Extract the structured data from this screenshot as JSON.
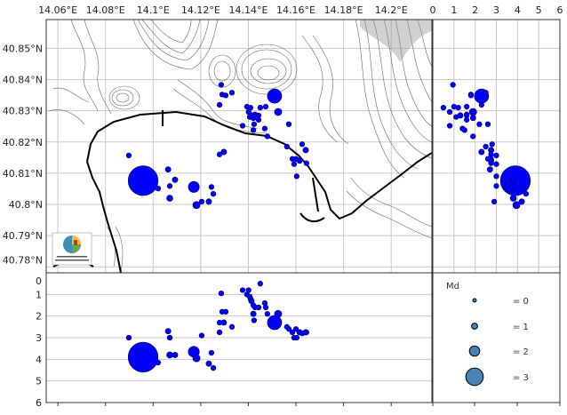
{
  "colors": {
    "event_fill": "#0000ff",
    "event_stroke": "#00008b",
    "legend_fill": "#4682b4",
    "grid": "#c8c8c8"
  },
  "map": {
    "lon_ticks": [
      {
        "value": 14.06,
        "label": "14.06°E"
      },
      {
        "value": 14.08,
        "label": "14.08°E"
      },
      {
        "value": 14.1,
        "label": "14.1°E"
      },
      {
        "value": 14.12,
        "label": "14.12°E"
      },
      {
        "value": 14.14,
        "label": "14.14°E"
      },
      {
        "value": 14.16,
        "label": "14.16°E"
      },
      {
        "value": 14.18,
        "label": "14.18°E"
      },
      {
        "value": 14.2,
        "label": "14.2°E"
      }
    ],
    "lat_ticks": [
      {
        "value": 40.85,
        "label": "40.85°N"
      },
      {
        "value": 40.84,
        "label": "40.84°N"
      },
      {
        "value": 40.83,
        "label": "40.83°N"
      },
      {
        "value": 40.82,
        "label": "40.82°N"
      },
      {
        "value": 40.81,
        "label": "40.81°N"
      },
      {
        "value": 40.8,
        "label": "40.8°N"
      },
      {
        "value": 40.79,
        "label": "40.79°N"
      },
      {
        "value": 40.78,
        "label": "40.78°N"
      }
    ],
    "lon_range": [
      14.0551,
      14.2171
    ],
    "lat_range": [
      40.7781,
      40.8592
    ],
    "logo_text": "ISTITUTO NAZIONALE DI GEOFISICA E VULCANOLOGIA"
  },
  "depth_axis": {
    "ticks": [
      "0",
      "1",
      "2",
      "3",
      "4",
      "5",
      "6"
    ],
    "range": [
      0,
      6
    ]
  },
  "legend": {
    "title": "Md",
    "items": [
      {
        "md": 0,
        "label": "= 0"
      },
      {
        "md": 1,
        "label": "= 1"
      },
      {
        "md": 2,
        "label": "= 2"
      },
      {
        "md": 3,
        "label": "= 3"
      }
    ]
  },
  "chart_data": {
    "type": "scatter",
    "fields": [
      "lon",
      "lat",
      "depth_km",
      "md"
    ],
    "events": [
      [
        14.0958,
        40.8076,
        3.9,
        4.0
      ],
      [
        14.151,
        40.8347,
        2.3,
        2.6
      ],
      [
        14.1171,
        40.8056,
        3.65,
        2.1
      ],
      [
        14.1182,
        40.7998,
        3.95,
        1.3
      ],
      [
        14.1525,
        40.8296,
        1.9,
        1.3
      ],
      [
        14.1286,
        40.8383,
        0.95,
        0.6
      ],
      [
        14.129,
        40.8352,
        1.8,
        0.6
      ],
      [
        14.1305,
        40.8349,
        1.8,
        0.6
      ],
      [
        14.1331,
        40.8358,
        2.5,
        0.6
      ],
      [
        14.1279,
        40.8319,
        2.3,
        0.6
      ],
      [
        14.1394,
        40.8313,
        1.0,
        0.6
      ],
      [
        14.1409,
        40.831,
        1.2,
        0.6
      ],
      [
        14.145,
        40.831,
        0.5,
        0.6
      ],
      [
        14.1473,
        40.8313,
        1.6,
        0.6
      ],
      [
        14.1401,
        40.8296,
        0.8,
        0.6
      ],
      [
        14.1413,
        40.8285,
        1.3,
        0.8
      ],
      [
        14.1428,
        40.8288,
        1.6,
        0.6
      ],
      [
        14.1443,
        40.8285,
        1.6,
        0.6
      ],
      [
        14.1406,
        40.828,
        1.1,
        0.6
      ],
      [
        14.1421,
        40.8277,
        1.9,
        0.8
      ],
      [
        14.1443,
        40.8271,
        1.6,
        0.6
      ],
      [
        14.1376,
        40.8252,
        0.8,
        0.6
      ],
      [
        14.1424,
        40.8257,
        2.2,
        0.6
      ],
      [
        14.1469,
        40.8243,
        1.4,
        0.6
      ],
      [
        14.1421,
        40.8238,
        1.5,
        0.6
      ],
      [
        14.148,
        40.8218,
        1.9,
        0.6
      ],
      [
        14.157,
        40.8257,
        2.6,
        0.6
      ],
      [
        14.1562,
        40.8185,
        2.5,
        0.6
      ],
      [
        14.1626,
        40.8193,
        2.8,
        0.6
      ],
      [
        14.1641,
        40.8174,
        2.75,
        0.8
      ],
      [
        14.1585,
        40.8146,
        2.75,
        0.6
      ],
      [
        14.16,
        40.8146,
        2.6,
        0.6
      ],
      [
        14.1615,
        40.814,
        2.75,
        0.8
      ],
      [
        14.1592,
        40.8129,
        3.0,
        0.6
      ],
      [
        14.1644,
        40.8132,
        2.75,
        0.6
      ],
      [
        14.1603,
        40.809,
        3.0,
        0.6
      ],
      [
        14.1279,
        40.816,
        2.75,
        0.6
      ],
      [
        14.1297,
        40.8168,
        2.3,
        0.8
      ],
      [
        14.0898,
        40.8157,
        3.0,
        0.6
      ],
      [
        14.1021,
        40.8051,
        4.15,
        0.6
      ],
      [
        14.1063,
        40.8112,
        2.7,
        0.8
      ],
      [
        14.1092,
        40.8079,
        3.8,
        0.8
      ],
      [
        14.107,
        40.8059,
        3.0,
        0.6
      ],
      [
        14.107,
        40.802,
        3.8,
        1.0
      ],
      [
        14.1204,
        40.8009,
        2.9,
        0.6
      ],
      [
        14.1234,
        40.8009,
        4.2,
        0.8
      ],
      [
        14.1245,
        40.8056,
        3.7,
        0.6
      ],
      [
        14.1253,
        40.8034,
        4.4,
        0.6
      ]
    ]
  }
}
